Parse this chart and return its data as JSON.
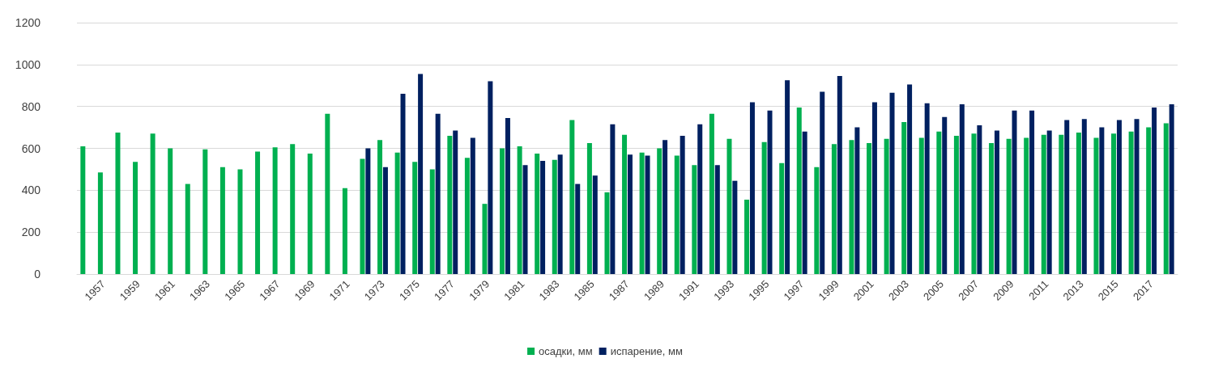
{
  "chart_data": {
    "type": "bar",
    "categories": [
      null,
      "1957",
      null,
      "1959",
      null,
      "1961",
      null,
      "1963",
      null,
      "1965",
      null,
      "1967",
      null,
      "1969",
      null,
      "1971",
      null,
      "1973",
      null,
      "1975",
      null,
      "1977",
      null,
      "1979",
      null,
      "1981",
      null,
      "1983",
      null,
      "1985",
      null,
      "1987",
      null,
      "1989",
      null,
      "1991",
      null,
      "1993",
      null,
      "1995",
      null,
      "1997",
      null,
      "1999",
      null,
      "2001",
      null,
      "2003",
      null,
      "2005",
      null,
      "2007",
      null,
      "2009",
      null,
      "2011",
      null,
      "2013",
      null,
      "2015",
      null,
      "2017",
      null
    ],
    "series": [
      {
        "name": "осадки, мм",
        "color": "#00b050",
        "values": [
          610,
          485,
          675,
          535,
          670,
          600,
          430,
          595,
          510,
          500,
          585,
          605,
          620,
          575,
          765,
          410,
          550,
          640,
          580,
          535,
          500,
          660,
          555,
          335,
          600,
          610,
          575,
          545,
          735,
          625,
          390,
          665,
          580,
          600,
          565,
          520,
          765,
          645,
          355,
          630,
          530,
          795,
          510,
          620,
          640,
          625,
          645,
          725,
          650,
          680,
          660,
          670,
          625,
          645,
          650,
          665,
          665,
          675,
          650,
          670,
          680,
          700,
          720
        ]
      },
      {
        "name": "испарение, мм",
        "color": "#002060",
        "values": [
          null,
          null,
          null,
          null,
          null,
          null,
          null,
          null,
          null,
          null,
          null,
          null,
          null,
          null,
          null,
          null,
          600,
          510,
          860,
          955,
          765,
          685,
          650,
          920,
          745,
          520,
          540,
          570,
          430,
          470,
          715,
          570,
          565,
          640,
          660,
          715,
          520,
          445,
          820,
          780,
          925,
          680,
          870,
          945,
          700,
          820,
          865,
          905,
          815,
          750,
          810,
          710,
          685,
          780,
          780,
          685,
          735,
          740,
          700,
          735,
          740,
          795,
          810
        ]
      }
    ],
    "ylim": [
      0,
      1200
    ],
    "yticks": [
      0,
      200,
      400,
      600,
      800,
      1000,
      1200
    ],
    "grid": "y",
    "legend": "bottom"
  }
}
